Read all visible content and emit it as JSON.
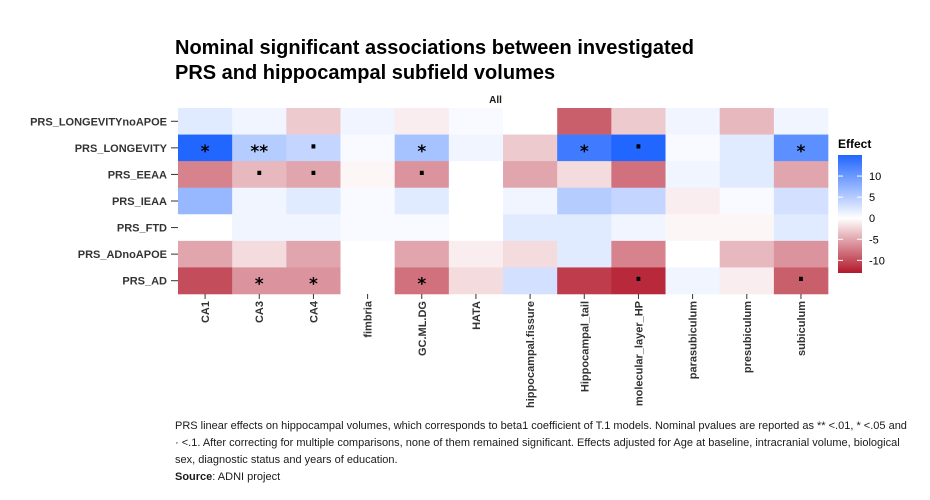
{
  "title": {
    "line1": "Nominal significant associations between investigated",
    "line2": "PRS and hippocampal subfield volumes"
  },
  "caption": {
    "line1": "PRS linear effects on hippocampal volumes, which corresponds to beta1 coefficient of T.1 models. Nominal pvalues are reported as ** <.01, * <.05 and",
    "line2": "· <.1. After correcting for multiple comparisons, none of them remained significant. Effects adjusted for Age at baseline, intracranial volume, biological",
    "line3": "sex, diagnostic status and years of education.",
    "source_label": "Source",
    "source_value": ": ADNI project"
  },
  "chart_data": {
    "type": "heatmap",
    "facet_label": "All",
    "x_categories": [
      "CA1",
      "CA3",
      "CA4",
      "fimbria",
      "GC.ML.DG",
      "HATA",
      "hippocampal.fissure",
      "Hippocampal_tail",
      "molecular_layer_HP",
      "parasubiculum",
      "presubiculum",
      "subiculum"
    ],
    "y_categories": [
      "PRS_LONGEVITYnoAPOE",
      "PRS_LONGEVITY",
      "PRS_EEAA",
      "PRS_IEAA",
      "PRS_FTD",
      "PRS_ADnoAPOE",
      "PRS_AD"
    ],
    "values": [
      [
        2,
        1,
        -3,
        1,
        -1,
        0.5,
        0,
        -9,
        -3,
        1,
        -4,
        1
      ],
      [
        15,
        5,
        4,
        0.5,
        6,
        1,
        -3,
        13,
        15,
        0.5,
        2,
        11
      ],
      [
        -7,
        -4,
        -5,
        -0.5,
        -6,
        0,
        -5,
        -2,
        -8,
        1,
        2,
        -5
      ],
      [
        7,
        1,
        2,
        0.5,
        2,
        0,
        1,
        5,
        4,
        -1,
        0.5,
        3
      ],
      [
        0,
        1,
        1,
        0.5,
        0.5,
        0,
        2,
        2,
        1,
        -0.5,
        -0.5,
        2
      ],
      [
        -5,
        -2,
        -5,
        0,
        -5,
        -1,
        -2,
        2,
        -7,
        0,
        -4,
        -6
      ],
      [
        -10,
        -6,
        -6,
        0,
        -8,
        -2,
        3,
        -11,
        -12,
        1,
        -1,
        -9
      ]
    ],
    "significance": [
      [
        "",
        "",
        "",
        "",
        "",
        "",
        "",
        "",
        "",
        "",
        "",
        ""
      ],
      [
        "*",
        "**",
        "·",
        "",
        "*",
        "",
        "",
        "*",
        "·",
        "",
        "",
        "*"
      ],
      [
        "",
        "·",
        "·",
        "",
        "·",
        "",
        "",
        "",
        "",
        "",
        "",
        ""
      ],
      [
        "",
        "",
        "",
        "",
        "",
        "",
        "",
        "",
        "",
        "",
        "",
        ""
      ],
      [
        "",
        "",
        "",
        "",
        "",
        "",
        "",
        "",
        "",
        "",
        "",
        ""
      ],
      [
        "",
        "",
        "",
        "",
        "",
        "",
        "",
        "",
        "",
        "",
        "",
        ""
      ],
      [
        "",
        "*",
        "*",
        "",
        "*",
        "",
        "",
        "",
        "·",
        "",
        "",
        "·"
      ]
    ],
    "legend": {
      "title": "Effect",
      "ticks": [
        10,
        5,
        0,
        -5,
        -10
      ],
      "tick_labels": [
        "10",
        "5",
        "0",
        "-5",
        "-10"
      ],
      "range": [
        -13,
        15
      ],
      "position": "right"
    },
    "colors": {
      "low": "#b2182b",
      "mid": "#ffffff",
      "high": "#2166ff",
      "panel_background": "#ebebeb",
      "strip_background": "#ffffff"
    }
  }
}
